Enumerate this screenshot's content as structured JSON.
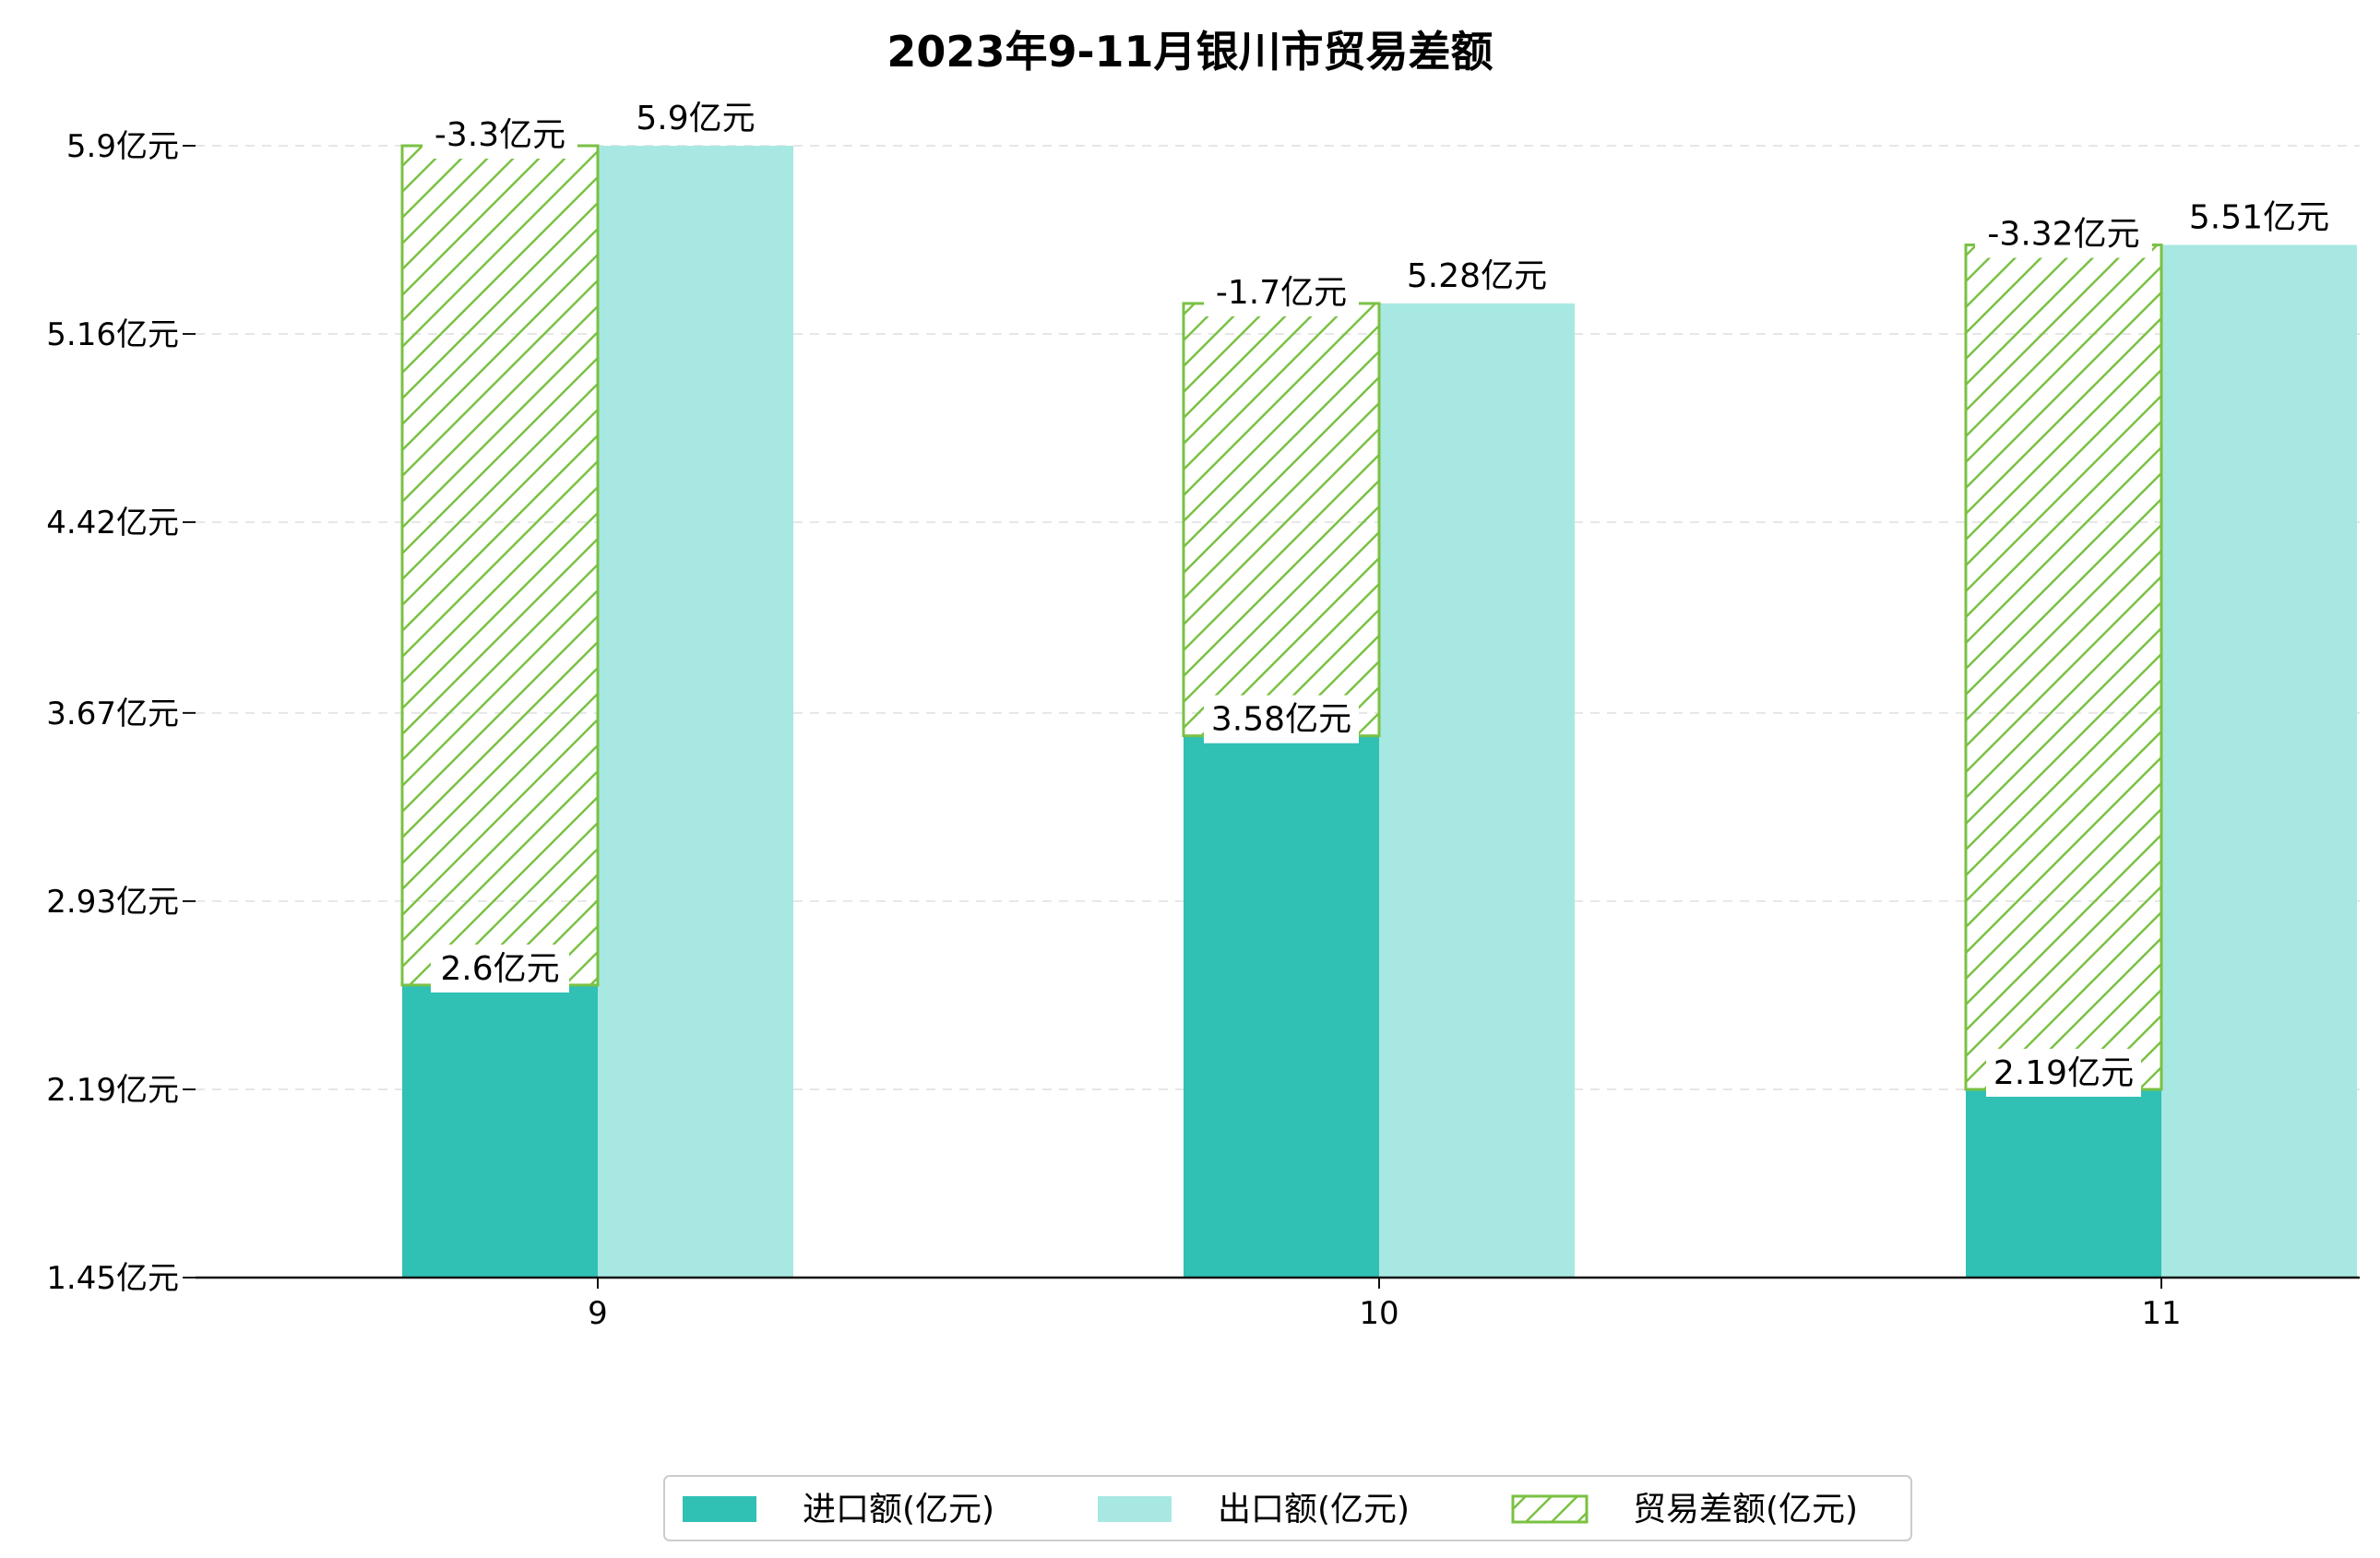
{
  "chart_data": {
    "type": "bar",
    "title": "2023年9-11月银川市贸易差额",
    "categories": [
      "9",
      "10",
      "11"
    ],
    "series": [
      {
        "name": "进口额(亿元)",
        "values": [
          2.6,
          3.58,
          2.19
        ],
        "labels": [
          "2.6亿元",
          "3.58亿元",
          "2.19亿元"
        ],
        "color": "#30c0b4"
      },
      {
        "name": "出口额(亿元)",
        "values": [
          5.9,
          5.28,
          5.51
        ],
        "labels": [
          "5.9亿元",
          "5.28亿元",
          "5.51亿元"
        ],
        "color": "#a8e8e2"
      },
      {
        "name": "贸易差额(亿元)",
        "values": [
          -3.3,
          -1.7,
          -3.32
        ],
        "labels": [
          "-3.3亿元",
          "-1.7亿元",
          "-3.32亿元"
        ],
        "color": "#7ac143"
      }
    ],
    "yticks": [
      1.45,
      2.19,
      2.93,
      3.67,
      4.42,
      5.16,
      5.9
    ],
    "ytick_labels": [
      "1.45亿元",
      "2.19亿元",
      "2.93亿元",
      "3.67亿元",
      "4.42亿元",
      "5.16亿元",
      "5.9亿元"
    ],
    "ylim": [
      1.45,
      5.9
    ],
    "grid": true,
    "legend_position": "bottom-center"
  }
}
